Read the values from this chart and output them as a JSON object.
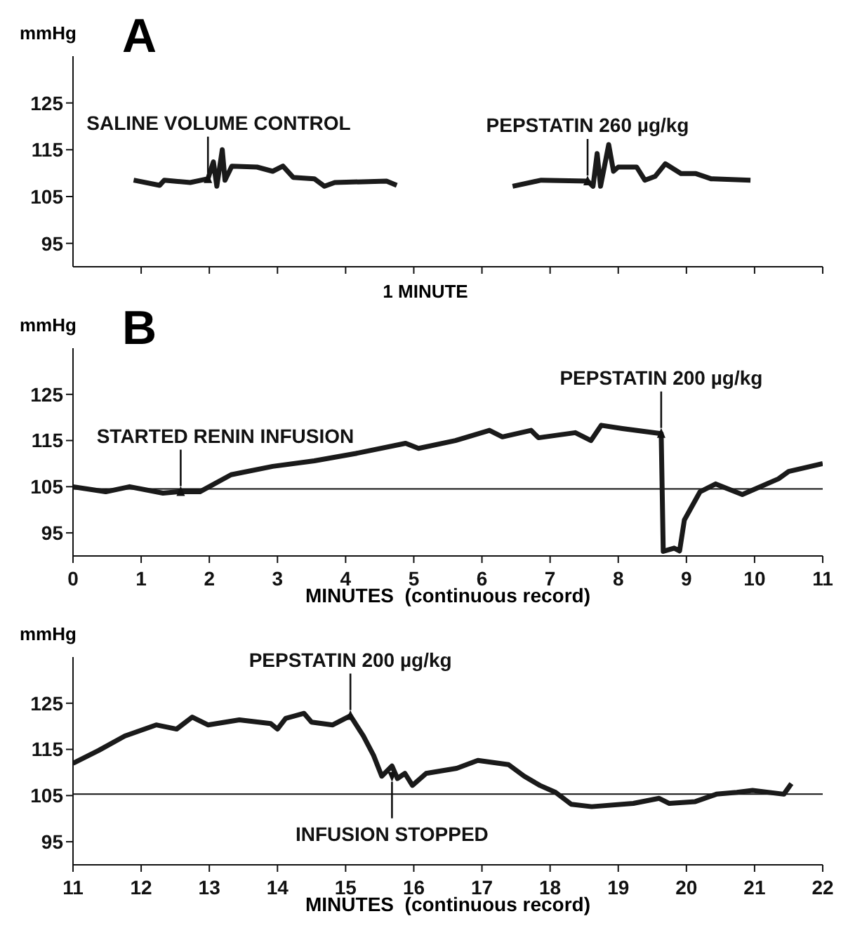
{
  "chart_data": [
    {
      "type": "line",
      "title": "A",
      "ylabel": "mmHg",
      "color": "#1a1a1a",
      "x": [
        0.89,
        1.27,
        1.34,
        1.72,
        1.98,
        2.06,
        2.11,
        2.19,
        2.23,
        2.33,
        2.7,
        2.93,
        3.08,
        3.23,
        3.54,
        3.69,
        3.84,
        4.6,
        4.75,
        5.6,
        6.45,
        6.87,
        7.55,
        7.63,
        7.69,
        7.74,
        7.86,
        7.93,
        8.0,
        8.27,
        8.39,
        8.54,
        8.69,
        8.92,
        9.14,
        9.36,
        9.94
      ],
      "values": [
        108.5,
        107.4,
        108.5,
        108,
        108.8,
        112.4,
        107.2,
        115,
        108.5,
        111.5,
        111.3,
        110.4,
        111.5,
        109.1,
        108.8,
        107.2,
        108,
        108.3,
        107.4,
        null,
        107.2,
        108.5,
        108.3,
        107.2,
        114.2,
        107.2,
        116.1,
        110.4,
        111.3,
        111.3,
        108.5,
        109.3,
        112,
        109.9,
        109.9,
        108.8,
        108.5
      ],
      "xlim": [
        0,
        11
      ],
      "xticks": [
        {
          "value": 1,
          "label": null
        },
        {
          "value": 2,
          "label": null
        },
        {
          "value": 3,
          "label": null
        },
        {
          "value": 4,
          "label": null
        },
        {
          "value": 5,
          "label": null
        },
        {
          "value": 6,
          "label": null
        },
        {
          "value": 7,
          "label": null
        },
        {
          "value": 8,
          "label": null
        },
        {
          "value": 9,
          "label": null
        },
        {
          "value": 10,
          "label": null
        },
        {
          "value": 11,
          "label": null
        }
      ],
      "ylim": [
        90,
        135
      ],
      "yticks": [
        95,
        105,
        115,
        125
      ],
      "tick_labels": "y",
      "annotations": [
        {
          "text": "SALINE VOLUME CONTROL",
          "x": 1.98,
          "y": 108.8
        },
        {
          "text": "PEPSTATIN 260 µg/kg",
          "x": 7.55,
          "y": 108.3
        },
        "1 MINUTE"
      ]
    },
    {
      "type": "line",
      "title": "B",
      "ylabel": "mmHg",
      "xlabel": "MINUTES  (continuous record)",
      "color": "#1a1a1a",
      "x": [
        0,
        0.48,
        0.83,
        1.32,
        1.55,
        1.86,
        2.32,
        2.93,
        3.54,
        4.15,
        4.88,
        5.07,
        5.61,
        6.11,
        6.3,
        6.72,
        6.83,
        7.37,
        7.6,
        7.75,
        8.06,
        8.63,
        8.66,
        8.82,
        8.9,
        8.97,
        9.2,
        9.43,
        9.82,
        10.35,
        10.5,
        11
      ],
      "values": [
        105,
        103.9,
        105,
        103.6,
        103.9,
        103.9,
        107.6,
        109.4,
        110.6,
        112.2,
        114.4,
        113.3,
        115,
        117.2,
        115.8,
        117.2,
        115.6,
        116.7,
        115,
        118.3,
        117.6,
        116.5,
        91,
        91.7,
        91.1,
        97.8,
        103.9,
        105.6,
        103.3,
        106.7,
        108.3,
        110
      ],
      "xlim": [
        0,
        11
      ],
      "xticks": [
        0,
        1,
        2,
        3,
        4,
        5,
        6,
        7,
        8,
        9,
        10,
        11
      ],
      "ylim": [
        90,
        135
      ],
      "yticks": [
        95,
        105,
        115,
        125
      ],
      "ref_lines": [
        {
          "axis": "y",
          "value": 104.5
        }
      ],
      "annotations": [
        {
          "text": "STARTED RENIN INFUSION",
          "x": 1.58,
          "y": 103.9
        },
        {
          "text": "PEPSTATIN 200 µg/kg",
          "x": 8.63,
          "y": 116.5
        }
      ]
    },
    {
      "type": "line",
      "ylabel": "mmHg",
      "xlabel": "MINUTES  (continuous record)",
      "color": "#1a1a1a",
      "x": [
        11,
        11.38,
        11.76,
        12.22,
        12.52,
        12.75,
        12.98,
        13.44,
        13.9,
        14.0,
        14.12,
        14.39,
        14.5,
        14.81,
        15.07,
        15.26,
        15.41,
        15.53,
        15.68,
        15.76,
        15.87,
        15.98,
        16.18,
        16.63,
        16.94,
        17.39,
        17.62,
        17.85,
        18.08,
        18.31,
        18.61,
        19.22,
        19.6,
        19.75,
        20.13,
        20.44,
        20.74,
        20.97,
        21.43,
        21.54
      ],
      "values": [
        112,
        114.8,
        117.9,
        120.3,
        119.4,
        122,
        120.3,
        121.4,
        120.6,
        119.4,
        121.7,
        122.8,
        120.9,
        120.3,
        122.3,
        117.9,
        113.7,
        109.2,
        111.4,
        108.7,
        109.8,
        107.2,
        109.8,
        110.9,
        112.6,
        111.7,
        109.2,
        107.2,
        105.7,
        103.1,
        102.6,
        103.3,
        104.4,
        103.3,
        103.7,
        105.3,
        105.7,
        106.1,
        105.3,
        107.6
      ],
      "xlim": [
        11,
        22
      ],
      "xticks": [
        11,
        12,
        13,
        14,
        15,
        16,
        17,
        18,
        19,
        20,
        21,
        22
      ],
      "ylim": [
        90,
        135
      ],
      "yticks": [
        95,
        105,
        115,
        125
      ],
      "ref_lines": [
        {
          "axis": "y",
          "value": 105.3
        }
      ],
      "annotations": [
        {
          "text": "PEPSTATIN 200 µg/kg",
          "x": 15.07,
          "y": 122.3
        },
        {
          "text": "INFUSION STOPPED",
          "x": 15.68,
          "y": 109.2
        }
      ]
    }
  ]
}
